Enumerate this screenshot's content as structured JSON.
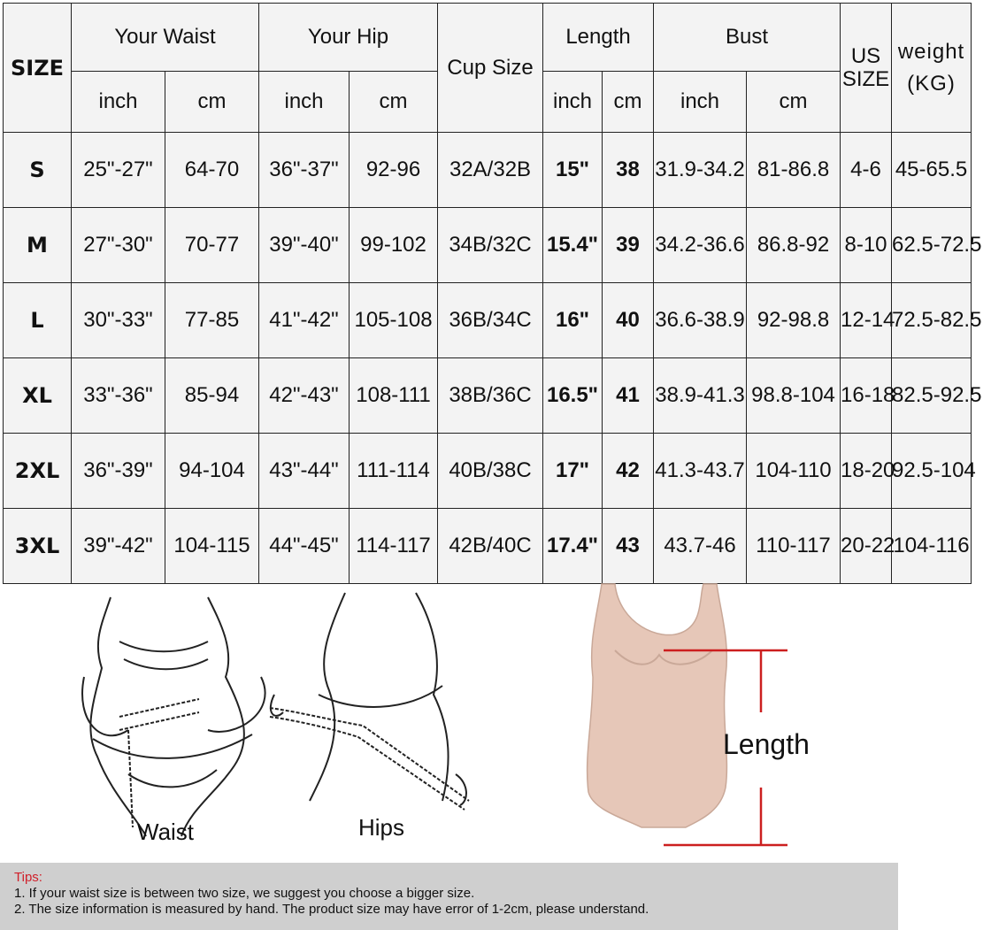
{
  "table": {
    "header": {
      "size": "SIZE",
      "waist": "Your Waist",
      "hip": "Your Hip",
      "cup": "Cup Size",
      "length": "Length",
      "bust": "Bust",
      "us_size": "US SIZE",
      "weight": "weight (KG)",
      "inch": "inch",
      "cm": "cm"
    },
    "rows": [
      {
        "size": "S",
        "waist_in": "25\"-27\"",
        "waist_cm": "64-70",
        "hip_in": "36\"-37\"",
        "hip_cm": "92-96",
        "cup": "32A/32B",
        "len_in": "15\"",
        "len_cm": "38",
        "bust_in": "31.9-34.2",
        "bust_cm": "81-86.8",
        "us": "4-6",
        "weight": "45-65.5"
      },
      {
        "size": "M",
        "waist_in": "27\"-30\"",
        "waist_cm": "70-77",
        "hip_in": "39\"-40\"",
        "hip_cm": "99-102",
        "cup": "34B/32C",
        "len_in": "15.4\"",
        "len_cm": "39",
        "bust_in": "34.2-36.6",
        "bust_cm": "86.8-92",
        "us": "8-10",
        "weight": "62.5-72.5"
      },
      {
        "size": "L",
        "waist_in": "30\"-33\"",
        "waist_cm": "77-85",
        "hip_in": "41\"-42\"",
        "hip_cm": "105-108",
        "cup": "36B/34C",
        "len_in": "16\"",
        "len_cm": "40",
        "bust_in": "36.6-38.9",
        "bust_cm": "92-98.8",
        "us": "12-14",
        "weight": "72.5-82.5"
      },
      {
        "size": "XL",
        "waist_in": "33\"-36\"",
        "waist_cm": "85-94",
        "hip_in": "42\"-43\"",
        "hip_cm": "108-111",
        "cup": "38B/36C",
        "len_in": "16.5\"",
        "len_cm": "41",
        "bust_in": "38.9-41.3",
        "bust_cm": "98.8-104",
        "us": "16-18",
        "weight": "82.5-92.5"
      },
      {
        "size": "2XL",
        "waist_in": "36\"-39\"",
        "waist_cm": "94-104",
        "hip_in": "43\"-44\"",
        "hip_cm": "111-114",
        "cup": "40B/38C",
        "len_in": "17\"",
        "len_cm": "42",
        "bust_in": "41.3-43.7",
        "bust_cm": "104-110",
        "us": "18-20",
        "weight": "92.5-104"
      },
      {
        "size": "3XL",
        "waist_in": "39\"-42\"",
        "waist_cm": "104-115",
        "hip_in": "44\"-45\"",
        "hip_cm": "114-117",
        "cup": "42B/40C",
        "len_in": "17.4\"",
        "len_cm": "43",
        "bust_in": "43.7-46",
        "bust_cm": "110-117",
        "us": "20-22",
        "weight": "104-116"
      }
    ],
    "colors": {
      "purple_light": "#e7e3ed",
      "purple_dark": "#c9bfd8",
      "gray": "#f3f3f3"
    }
  },
  "illustrations": {
    "waist_caption": "Waist",
    "hips_caption": "Hips",
    "length_caption": "Length",
    "bodysuit_color": "#e6c7b8",
    "marker_color": "#cc1f1f"
  },
  "tips": {
    "title": "Tips:",
    "items": [
      "1. If your waist size is between two size, we suggest you choose a bigger size.",
      "2. The size information is measured by hand. The product size may have error of 1-2cm, please understand."
    ]
  }
}
